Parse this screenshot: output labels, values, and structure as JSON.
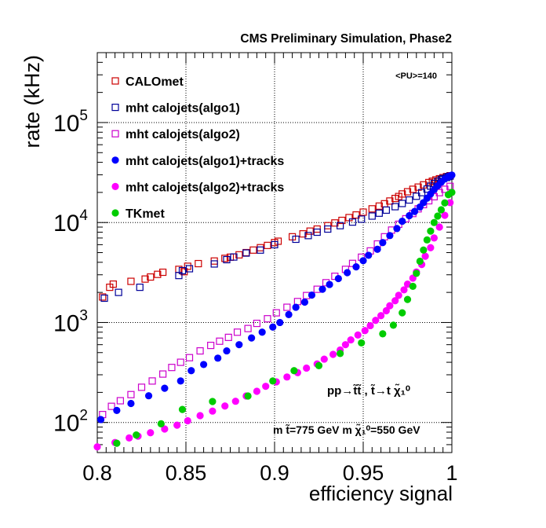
{
  "chart_data": {
    "type": "scatter",
    "title": "CMS Preliminary Simulation, Phase2",
    "xlabel": "efficiency signal",
    "ylabel": "rate (kHz)",
    "xlim": [
      0.8,
      1.0
    ],
    "ylim": [
      50,
      500000
    ],
    "yscale": "log",
    "grid": true,
    "legend_position": "top-left",
    "annotations": {
      "pileup": "<PU>=140",
      "process": "pp→t̃t̃ , t̃→t χ̃₁⁰",
      "masses": "m t̃=775 GeV m χ̃₁⁰=550 GeV"
    },
    "x_ticks": [
      {
        "value": 0.8,
        "label": "0.8"
      },
      {
        "value": 0.85,
        "label": "0.85"
      },
      {
        "value": 0.9,
        "label": "0.9"
      },
      {
        "value": 0.95,
        "label": "0.95"
      },
      {
        "value": 1.0,
        "label": "1"
      }
    ],
    "y_ticks": [
      {
        "value": 100,
        "base": "10",
        "exp": "2"
      },
      {
        "value": 1000,
        "base": "10",
        "exp": "3"
      },
      {
        "value": 10000,
        "base": "10",
        "exp": "4"
      },
      {
        "value": 100000,
        "base": "10",
        "exp": "5"
      }
    ],
    "series": [
      {
        "name": "CALOmet",
        "color": "#cc0000",
        "marker": "open-square",
        "x": [
          0.803,
          0.807,
          0.809,
          0.819,
          0.827,
          0.83,
          0.834,
          0.837,
          0.846,
          0.849,
          0.851,
          0.857,
          0.866,
          0.872,
          0.875,
          0.88,
          0.884,
          0.888,
          0.892,
          0.896,
          0.9,
          0.902,
          0.91,
          0.916,
          0.92,
          0.924,
          0.93,
          0.934,
          0.938,
          0.942,
          0.946,
          0.95,
          0.955,
          0.959,
          0.962,
          0.965,
          0.968,
          0.97,
          0.972,
          0.975,
          0.978,
          0.981,
          0.984,
          0.987,
          0.989,
          0.991,
          0.993,
          0.995,
          0.997,
          0.999
        ],
        "y": [
          1800,
          2250,
          2420,
          2580,
          2720,
          2850,
          3030,
          3180,
          3400,
          3220,
          3650,
          3880,
          4120,
          4380,
          4500,
          4750,
          5000,
          5300,
          5600,
          5900,
          6300,
          6500,
          7200,
          7700,
          8200,
          8600,
          9300,
          9900,
          10500,
          11200,
          11900,
          12700,
          13700,
          14600,
          15400,
          16400,
          17400,
          18200,
          19300,
          20300,
          21500,
          22600,
          23800,
          25100,
          25900,
          26700,
          27400,
          28100,
          28800,
          29400
        ]
      },
      {
        "name": "mht calojets(algo1)",
        "color": "#000099",
        "marker": "open-square",
        "x": [
          0.804,
          0.812,
          0.824,
          0.846,
          0.848,
          0.852,
          0.866,
          0.873,
          0.877,
          0.884,
          0.892,
          0.9,
          0.912,
          0.919,
          0.924,
          0.93,
          0.937,
          0.944,
          0.949,
          0.955,
          0.959,
          0.963,
          0.968,
          0.972,
          0.976,
          0.98,
          0.983,
          0.986,
          0.988,
          0.99,
          0.992,
          0.994,
          0.995,
          0.997,
          0.998,
          0.999
        ],
        "y": [
          1750,
          2000,
          2250,
          2950,
          3300,
          3450,
          3850,
          4250,
          4520,
          4950,
          5300,
          6000,
          6800,
          7400,
          8000,
          8600,
          9300,
          10100,
          10800,
          11600,
          12400,
          13300,
          14400,
          15500,
          16800,
          18300,
          19900,
          21600,
          23100,
          24600,
          25800,
          26900,
          27500,
          28200,
          28800,
          29100
        ]
      },
      {
        "name": "mht calojets(algo2)",
        "color": "#cc00cc",
        "marker": "open-square",
        "x": [
          0.803,
          0.808,
          0.813,
          0.819,
          0.825,
          0.831,
          0.837,
          0.842,
          0.847,
          0.852,
          0.858,
          0.864,
          0.869,
          0.874,
          0.879,
          0.885,
          0.89,
          0.896,
          0.901,
          0.907,
          0.913,
          0.918,
          0.924,
          0.929,
          0.934,
          0.94,
          0.944,
          0.949,
          0.954,
          0.958,
          0.962,
          0.966,
          0.97,
          0.974,
          0.978,
          0.981,
          0.984,
          0.987,
          0.99,
          0.993,
          0.996,
          0.999
        ],
        "y": [
          120,
          145,
          165,
          190,
          225,
          260,
          305,
          355,
          400,
          445,
          520,
          590,
          650,
          710,
          800,
          870,
          980,
          1090,
          1250,
          1420,
          1620,
          1860,
          2150,
          2500,
          2900,
          3400,
          3900,
          4500,
          5200,
          6100,
          7200,
          8400,
          9600,
          10900,
          12300,
          13700,
          15100,
          16500,
          18100,
          19900,
          21500,
          23000
        ]
      },
      {
        "name": "mht calojets(algo1)+tracks",
        "color": "#0000ff",
        "marker": "filled-circle",
        "x": [
          0.802,
          0.811,
          0.819,
          0.829,
          0.838,
          0.847,
          0.853,
          0.86,
          0.868,
          0.873,
          0.88,
          0.887,
          0.893,
          0.899,
          0.903,
          0.908,
          0.912,
          0.917,
          0.921,
          0.927,
          0.931,
          0.936,
          0.941,
          0.946,
          0.95,
          0.953,
          0.958,
          0.961,
          0.965,
          0.969,
          0.972,
          0.976,
          0.979,
          0.982,
          0.984,
          0.986,
          0.988,
          0.99,
          0.992,
          0.994,
          0.996,
          0.998,
          0.999,
          1.0
        ],
        "y": [
          107,
          132,
          155,
          185,
          220,
          260,
          330,
          380,
          440,
          520,
          600,
          700,
          800,
          900,
          1000,
          1200,
          1420,
          1600,
          1880,
          2150,
          2400,
          2750,
          3150,
          3600,
          4150,
          4700,
          5400,
          6300,
          7400,
          8700,
          10300,
          11700,
          12900,
          14300,
          15800,
          17500,
          19300,
          21300,
          23300,
          25300,
          27200,
          28600,
          29400,
          29800
        ]
      },
      {
        "name": "mht calojets(algo2)+tracks",
        "color": "#ff00ff",
        "marker": "filled-circle",
        "x": [
          0.8,
          0.81,
          0.818,
          0.823,
          0.83,
          0.838,
          0.845,
          0.851,
          0.858,
          0.865,
          0.872,
          0.878,
          0.884,
          0.89,
          0.895,
          0.901,
          0.907,
          0.913,
          0.918,
          0.924,
          0.928,
          0.933,
          0.937,
          0.94,
          0.943,
          0.947,
          0.951,
          0.954,
          0.957,
          0.96,
          0.963,
          0.965,
          0.968,
          0.97,
          0.973,
          0.975,
          0.978,
          0.98,
          0.983,
          0.985,
          0.988,
          0.99,
          0.993,
          0.996,
          0.999
        ],
        "y": [
          57,
          63,
          70,
          73,
          79,
          86,
          94,
          104,
          117,
          130,
          146,
          163,
          184,
          205,
          230,
          255,
          285,
          315,
          350,
          385,
          430,
          480,
          530,
          600,
          670,
          750,
          830,
          930,
          1050,
          1170,
          1310,
          1470,
          1650,
          1870,
          2120,
          2420,
          2780,
          3200,
          3800,
          4600,
          5600,
          7000,
          9000,
          11800,
          15800
        ]
      },
      {
        "name": "TKmet",
        "color": "#00cc00",
        "marker": "filled-circle",
        "x": [
          0.811,
          0.822,
          0.836,
          0.848,
          0.865,
          0.885,
          0.899,
          0.911,
          0.925,
          0.937,
          0.949,
          0.961,
          0.967,
          0.972,
          0.975,
          0.978,
          0.98,
          0.982,
          0.984,
          0.986,
          0.988,
          0.99,
          0.992,
          0.994,
          0.996,
          0.998,
          1.0
        ],
        "y": [
          62,
          75,
          97,
          135,
          162,
          184,
          260,
          330,
          370,
          490,
          625,
          770,
          940,
          1250,
          1700,
          2300,
          3100,
          4100,
          5300,
          6700,
          8200,
          10000,
          11600,
          13400,
          15700,
          19000,
          20000
        ]
      }
    ]
  }
}
